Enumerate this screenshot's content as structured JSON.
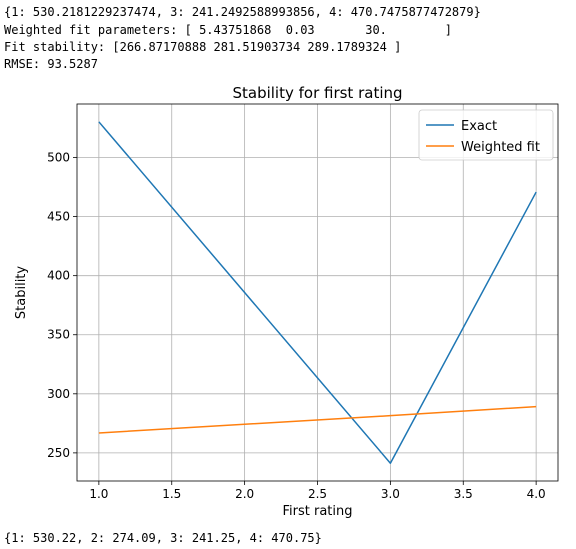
{
  "console_output": {
    "dict_exact": "{1: 530.2181229237474, 3: 241.2492588993856, 4: 470.7475877472879}",
    "weighted_params": "Weighted fit parameters: [ 5.43751868  0.03       30.        ]",
    "fit_stability": "Fit stability: [266.87170888 281.51903734 289.1789324 ]",
    "rmse": "RMSE: 93.5287",
    "dict_rounded": "{1: 530.22, 2: 274.09, 3: 241.25, 4: 470.75}"
  },
  "chart_data": {
    "type": "line",
    "title": "Stability for first rating",
    "xlabel": "First rating",
    "ylabel": "Stability",
    "xlim": [
      0.85,
      4.15
    ],
    "ylim": [
      226.2,
      545.3
    ],
    "xticks": [
      1.0,
      1.5,
      2.0,
      2.5,
      3.0,
      3.5,
      4.0
    ],
    "xtick_labels": [
      "1.0",
      "1.5",
      "2.0",
      "2.5",
      "3.0",
      "3.5",
      "4.0"
    ],
    "yticks": [
      250,
      300,
      350,
      400,
      450,
      500
    ],
    "ytick_labels": [
      "250",
      "300",
      "350",
      "400",
      "450",
      "500"
    ],
    "grid": true,
    "legend_position": "upper right",
    "series": [
      {
        "name": "Exact",
        "color": "#1f77b4",
        "x": [
          1,
          3,
          4
        ],
        "y": [
          530.2181229237474,
          241.2492588993856,
          470.7475877472879
        ]
      },
      {
        "name": "Weighted fit",
        "color": "#ff7f0e",
        "x": [
          1,
          3,
          4
        ],
        "y": [
          266.87170888,
          281.51903734,
          289.1789324
        ]
      }
    ]
  }
}
